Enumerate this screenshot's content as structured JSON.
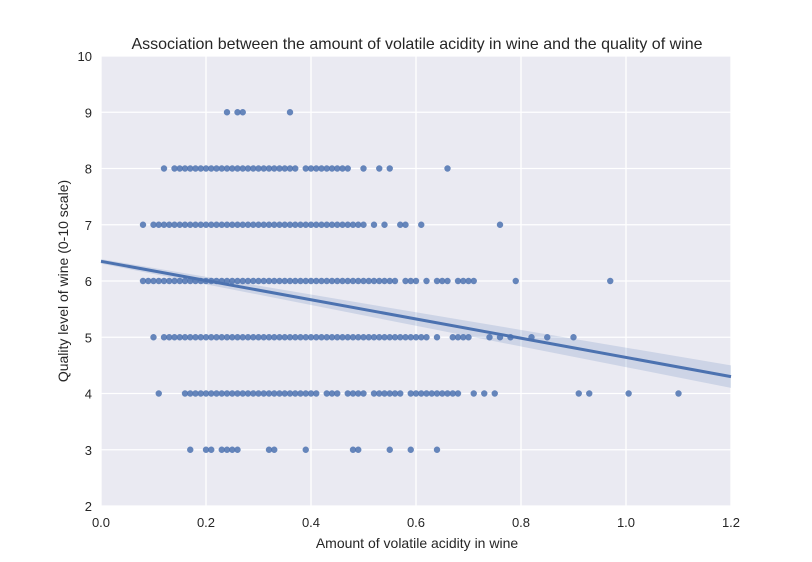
{
  "chart_data": {
    "type": "scatter",
    "title": "Association between the amount of volatile acidity in wine and the quality of wine",
    "xlabel": "Amount of volatile acidity in wine",
    "ylabel": "Quality level of wine (0-10 scale)",
    "xlim": [
      0.0,
      1.2
    ],
    "ylim": [
      2,
      10
    ],
    "x_ticks": [
      "0.0",
      "0.2",
      "0.4",
      "0.6",
      "0.8",
      "1.0",
      "1.2"
    ],
    "y_ticks": [
      "2",
      "3",
      "4",
      "5",
      "6",
      "7",
      "8",
      "9",
      "10"
    ],
    "grid": true,
    "colors": {
      "background": "#eaeaf2",
      "grid": "#ffffff",
      "points": "#4c72b0",
      "line": "#4c72b0",
      "band": "#4c72b0"
    },
    "regression": {
      "x": [
        0.0,
        1.2
      ],
      "y": [
        6.35,
        4.3
      ],
      "ci_lower": [
        6.31,
        4.1
      ],
      "ci_upper": [
        6.39,
        4.5
      ]
    },
    "series": [
      {
        "points": [
          [
            0.24,
            9
          ],
          [
            0.26,
            9
          ],
          [
            0.27,
            9
          ],
          [
            0.36,
            9
          ],
          [
            0.12,
            8
          ],
          [
            0.14,
            8
          ],
          [
            0.15,
            8
          ],
          [
            0.16,
            8
          ],
          [
            0.17,
            8
          ],
          [
            0.18,
            8
          ],
          [
            0.19,
            8
          ],
          [
            0.2,
            8
          ],
          [
            0.21,
            8
          ],
          [
            0.22,
            8
          ],
          [
            0.23,
            8
          ],
          [
            0.24,
            8
          ],
          [
            0.25,
            8
          ],
          [
            0.26,
            8
          ],
          [
            0.27,
            8
          ],
          [
            0.28,
            8
          ],
          [
            0.29,
            8
          ],
          [
            0.3,
            8
          ],
          [
            0.31,
            8
          ],
          [
            0.32,
            8
          ],
          [
            0.33,
            8
          ],
          [
            0.34,
            8
          ],
          [
            0.35,
            8
          ],
          [
            0.36,
            8
          ],
          [
            0.37,
            8
          ],
          [
            0.39,
            8
          ],
          [
            0.4,
            8
          ],
          [
            0.41,
            8
          ],
          [
            0.42,
            8
          ],
          [
            0.43,
            8
          ],
          [
            0.44,
            8
          ],
          [
            0.45,
            8
          ],
          [
            0.46,
            8
          ],
          [
            0.47,
            8
          ],
          [
            0.5,
            8
          ],
          [
            0.53,
            8
          ],
          [
            0.55,
            8
          ],
          [
            0.66,
            8
          ],
          [
            0.08,
            7
          ],
          [
            0.1,
            7
          ],
          [
            0.11,
            7
          ],
          [
            0.12,
            7
          ],
          [
            0.13,
            7
          ],
          [
            0.14,
            7
          ],
          [
            0.15,
            7
          ],
          [
            0.16,
            7
          ],
          [
            0.17,
            7
          ],
          [
            0.18,
            7
          ],
          [
            0.19,
            7
          ],
          [
            0.2,
            7
          ],
          [
            0.21,
            7
          ],
          [
            0.22,
            7
          ],
          [
            0.23,
            7
          ],
          [
            0.24,
            7
          ],
          [
            0.25,
            7
          ],
          [
            0.26,
            7
          ],
          [
            0.27,
            7
          ],
          [
            0.28,
            7
          ],
          [
            0.29,
            7
          ],
          [
            0.3,
            7
          ],
          [
            0.31,
            7
          ],
          [
            0.32,
            7
          ],
          [
            0.33,
            7
          ],
          [
            0.34,
            7
          ],
          [
            0.35,
            7
          ],
          [
            0.36,
            7
          ],
          [
            0.37,
            7
          ],
          [
            0.38,
            7
          ],
          [
            0.39,
            7
          ],
          [
            0.4,
            7
          ],
          [
            0.41,
            7
          ],
          [
            0.42,
            7
          ],
          [
            0.43,
            7
          ],
          [
            0.44,
            7
          ],
          [
            0.45,
            7
          ],
          [
            0.46,
            7
          ],
          [
            0.47,
            7
          ],
          [
            0.48,
            7
          ],
          [
            0.49,
            7
          ],
          [
            0.5,
            7
          ],
          [
            0.52,
            7
          ],
          [
            0.54,
            7
          ],
          [
            0.57,
            7
          ],
          [
            0.58,
            7
          ],
          [
            0.61,
            7
          ],
          [
            0.76,
            7
          ],
          [
            0.08,
            6
          ],
          [
            0.09,
            6
          ],
          [
            0.1,
            6
          ],
          [
            0.11,
            6
          ],
          [
            0.12,
            6
          ],
          [
            0.13,
            6
          ],
          [
            0.14,
            6
          ],
          [
            0.15,
            6
          ],
          [
            0.16,
            6
          ],
          [
            0.17,
            6
          ],
          [
            0.18,
            6
          ],
          [
            0.19,
            6
          ],
          [
            0.2,
            6
          ],
          [
            0.21,
            6
          ],
          [
            0.22,
            6
          ],
          [
            0.23,
            6
          ],
          [
            0.24,
            6
          ],
          [
            0.25,
            6
          ],
          [
            0.26,
            6
          ],
          [
            0.27,
            6
          ],
          [
            0.28,
            6
          ],
          [
            0.29,
            6
          ],
          [
            0.3,
            6
          ],
          [
            0.31,
            6
          ],
          [
            0.32,
            6
          ],
          [
            0.33,
            6
          ],
          [
            0.34,
            6
          ],
          [
            0.35,
            6
          ],
          [
            0.36,
            6
          ],
          [
            0.37,
            6
          ],
          [
            0.38,
            6
          ],
          [
            0.39,
            6
          ],
          [
            0.4,
            6
          ],
          [
            0.41,
            6
          ],
          [
            0.42,
            6
          ],
          [
            0.43,
            6
          ],
          [
            0.44,
            6
          ],
          [
            0.45,
            6
          ],
          [
            0.46,
            6
          ],
          [
            0.47,
            6
          ],
          [
            0.48,
            6
          ],
          [
            0.49,
            6
          ],
          [
            0.5,
            6
          ],
          [
            0.51,
            6
          ],
          [
            0.52,
            6
          ],
          [
            0.53,
            6
          ],
          [
            0.54,
            6
          ],
          [
            0.55,
            6
          ],
          [
            0.56,
            6
          ],
          [
            0.58,
            6
          ],
          [
            0.59,
            6
          ],
          [
            0.6,
            6
          ],
          [
            0.62,
            6
          ],
          [
            0.64,
            6
          ],
          [
            0.65,
            6
          ],
          [
            0.66,
            6
          ],
          [
            0.68,
            6
          ],
          [
            0.69,
            6
          ],
          [
            0.7,
            6
          ],
          [
            0.71,
            6
          ],
          [
            0.79,
            6
          ],
          [
            0.97,
            6
          ],
          [
            0.1,
            5
          ],
          [
            0.12,
            5
          ],
          [
            0.13,
            5
          ],
          [
            0.14,
            5
          ],
          [
            0.15,
            5
          ],
          [
            0.16,
            5
          ],
          [
            0.17,
            5
          ],
          [
            0.18,
            5
          ],
          [
            0.19,
            5
          ],
          [
            0.2,
            5
          ],
          [
            0.21,
            5
          ],
          [
            0.22,
            5
          ],
          [
            0.23,
            5
          ],
          [
            0.24,
            5
          ],
          [
            0.25,
            5
          ],
          [
            0.26,
            5
          ],
          [
            0.27,
            5
          ],
          [
            0.28,
            5
          ],
          [
            0.29,
            5
          ],
          [
            0.3,
            5
          ],
          [
            0.31,
            5
          ],
          [
            0.32,
            5
          ],
          [
            0.33,
            5
          ],
          [
            0.34,
            5
          ],
          [
            0.35,
            5
          ],
          [
            0.36,
            5
          ],
          [
            0.37,
            5
          ],
          [
            0.38,
            5
          ],
          [
            0.39,
            5
          ],
          [
            0.4,
            5
          ],
          [
            0.41,
            5
          ],
          [
            0.42,
            5
          ],
          [
            0.43,
            5
          ],
          [
            0.44,
            5
          ],
          [
            0.45,
            5
          ],
          [
            0.46,
            5
          ],
          [
            0.47,
            5
          ],
          [
            0.48,
            5
          ],
          [
            0.49,
            5
          ],
          [
            0.5,
            5
          ],
          [
            0.51,
            5
          ],
          [
            0.52,
            5
          ],
          [
            0.53,
            5
          ],
          [
            0.54,
            5
          ],
          [
            0.55,
            5
          ],
          [
            0.56,
            5
          ],
          [
            0.57,
            5
          ],
          [
            0.58,
            5
          ],
          [
            0.59,
            5
          ],
          [
            0.6,
            5
          ],
          [
            0.61,
            5
          ],
          [
            0.62,
            5
          ],
          [
            0.64,
            5
          ],
          [
            0.67,
            5
          ],
          [
            0.68,
            5
          ],
          [
            0.69,
            5
          ],
          [
            0.7,
            5
          ],
          [
            0.74,
            5
          ],
          [
            0.76,
            5
          ],
          [
            0.78,
            5
          ],
          [
            0.82,
            5
          ],
          [
            0.85,
            5
          ],
          [
            0.9,
            5
          ],
          [
            0.11,
            4
          ],
          [
            0.16,
            4
          ],
          [
            0.17,
            4
          ],
          [
            0.18,
            4
          ],
          [
            0.19,
            4
          ],
          [
            0.2,
            4
          ],
          [
            0.21,
            4
          ],
          [
            0.22,
            4
          ],
          [
            0.23,
            4
          ],
          [
            0.24,
            4
          ],
          [
            0.25,
            4
          ],
          [
            0.26,
            4
          ],
          [
            0.27,
            4
          ],
          [
            0.28,
            4
          ],
          [
            0.29,
            4
          ],
          [
            0.3,
            4
          ],
          [
            0.31,
            4
          ],
          [
            0.32,
            4
          ],
          [
            0.33,
            4
          ],
          [
            0.34,
            4
          ],
          [
            0.35,
            4
          ],
          [
            0.36,
            4
          ],
          [
            0.37,
            4
          ],
          [
            0.38,
            4
          ],
          [
            0.39,
            4
          ],
          [
            0.4,
            4
          ],
          [
            0.41,
            4
          ],
          [
            0.43,
            4
          ],
          [
            0.44,
            4
          ],
          [
            0.45,
            4
          ],
          [
            0.47,
            4
          ],
          [
            0.48,
            4
          ],
          [
            0.49,
            4
          ],
          [
            0.5,
            4
          ],
          [
            0.52,
            4
          ],
          [
            0.53,
            4
          ],
          [
            0.54,
            4
          ],
          [
            0.55,
            4
          ],
          [
            0.56,
            4
          ],
          [
            0.57,
            4
          ],
          [
            0.59,
            4
          ],
          [
            0.6,
            4
          ],
          [
            0.61,
            4
          ],
          [
            0.62,
            4
          ],
          [
            0.63,
            4
          ],
          [
            0.64,
            4
          ],
          [
            0.65,
            4
          ],
          [
            0.66,
            4
          ],
          [
            0.67,
            4
          ],
          [
            0.68,
            4
          ],
          [
            0.71,
            4
          ],
          [
            0.73,
            4
          ],
          [
            0.75,
            4
          ],
          [
            0.91,
            4
          ],
          [
            0.93,
            4
          ],
          [
            1.005,
            4
          ],
          [
            1.1,
            4
          ],
          [
            0.17,
            3
          ],
          [
            0.2,
            3
          ],
          [
            0.21,
            3
          ],
          [
            0.23,
            3
          ],
          [
            0.24,
            3
          ],
          [
            0.25,
            3
          ],
          [
            0.26,
            3
          ],
          [
            0.32,
            3
          ],
          [
            0.33,
            3
          ],
          [
            0.39,
            3
          ],
          [
            0.48,
            3
          ],
          [
            0.49,
            3
          ],
          [
            0.55,
            3
          ],
          [
            0.59,
            3
          ],
          [
            0.64,
            3
          ]
        ]
      }
    ]
  }
}
